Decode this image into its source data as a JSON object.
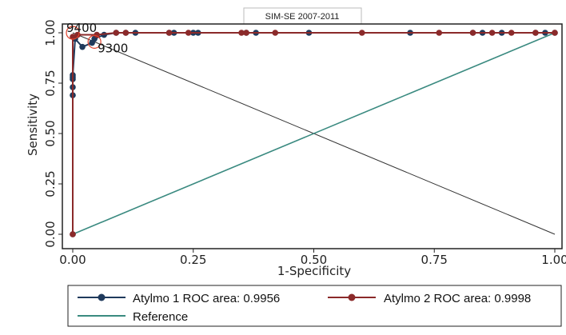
{
  "chart_data": {
    "type": "line",
    "title": "SIM-SE 2007-2011",
    "xlabel": "1-Specificity",
    "ylabel": "Sensitivity",
    "xlim": [
      0,
      1
    ],
    "ylim": [
      0,
      1
    ],
    "xticks": [
      0,
      0.25,
      0.5,
      0.75,
      1
    ],
    "yticks": [
      0,
      0.25,
      0.5,
      0.75,
      1
    ],
    "x_tick_labels": [
      "0.00",
      "0.25",
      "0.50",
      "0.75",
      "1.00"
    ],
    "y_tick_labels": [
      "0.00",
      "0.25",
      "0.50",
      "0.75",
      "1.00"
    ],
    "grid": false,
    "legend_position": "bottom",
    "series": [
      {
        "name": "Atylmo 1 ROC area: 0.9956",
        "color": "#1f3a5c",
        "marker_color": "#1f3a5c",
        "x": [
          0,
          0,
          0,
          0,
          0,
          0,
          0.005,
          0.02,
          0.04,
          0.045,
          0.065,
          0.09,
          0.11,
          0.13,
          0.2,
          0.21,
          0.25,
          0.26,
          0.36,
          0.38,
          0.49,
          0.7,
          0.83,
          0.85,
          0.89,
          0.96,
          0.98,
          1
        ],
        "y": [
          0,
          0.69,
          0.73,
          0.77,
          0.78,
          0.79,
          0.97,
          0.93,
          0.95,
          0.97,
          0.99,
          1,
          1,
          1,
          1,
          1,
          1,
          1,
          1,
          1,
          1,
          1,
          1,
          1,
          1,
          1,
          1,
          1
        ]
      },
      {
        "name": "Atylmo 2 ROC area: 0.9998",
        "color": "#8b2a2a",
        "marker_color": "#8b2a2a",
        "x": [
          0,
          0,
          0.01,
          0.05,
          0.09,
          0.11,
          0.2,
          0.24,
          0.35,
          0.36,
          0.42,
          0.6,
          0.76,
          0.83,
          0.87,
          0.91,
          0.96,
          1
        ],
        "y": [
          0,
          0.98,
          0.99,
          0.99,
          1,
          1,
          1,
          1,
          1,
          1,
          1,
          1,
          1,
          1,
          1,
          1,
          1,
          1
        ]
      },
      {
        "name": "Reference",
        "color": "#3a8a80",
        "x": [
          0,
          1
        ],
        "y": [
          0,
          1
        ]
      }
    ],
    "extra_lines": [
      {
        "color": "#333333",
        "x": [
          0,
          1
        ],
        "y": [
          1,
          0
        ]
      }
    ],
    "annotations": [
      {
        "text": "9400",
        "x": 0.0,
        "y": 1.0,
        "anchor": "start",
        "marker": "circle",
        "color": "#e0402a"
      },
      {
        "text": "9300",
        "x": 0.045,
        "y": 0.955,
        "anchor": "start",
        "marker": "circle",
        "color": "#e0402a"
      }
    ]
  }
}
